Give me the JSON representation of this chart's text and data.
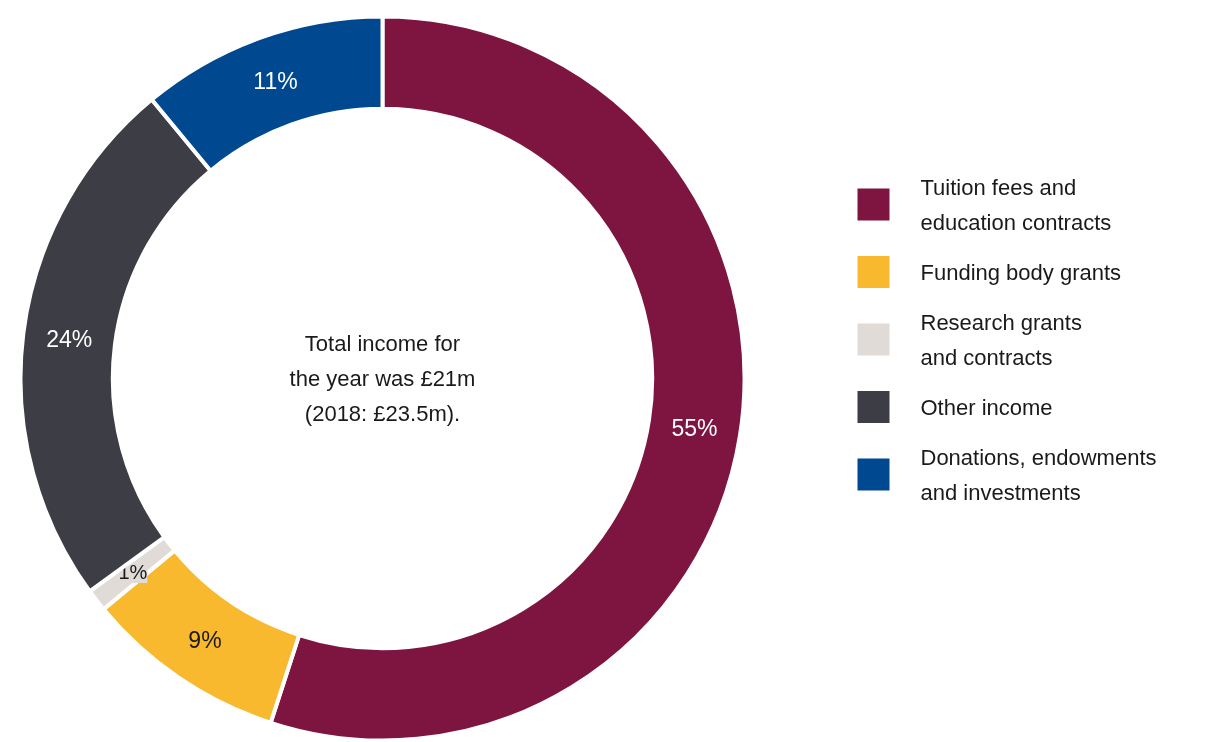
{
  "chart_data": {
    "type": "donut",
    "categories": [
      "Tuition fees and education contracts",
      "Funding body grants",
      "Research grants and contracts",
      "Other income",
      "Donations, endowments and investments"
    ],
    "values": [
      55,
      9,
      1,
      24,
      11
    ],
    "value_labels": [
      "55%",
      "9%",
      "1%",
      "24%",
      "11%"
    ],
    "colors": [
      "#7d1540",
      "#f8b92f",
      "#e0dbd6",
      "#3d3d45",
      "#00488f"
    ],
    "annotations": [
      "Total income for the year was £21m (2018: £23.5m)."
    ],
    "legend": "right"
  }
}
